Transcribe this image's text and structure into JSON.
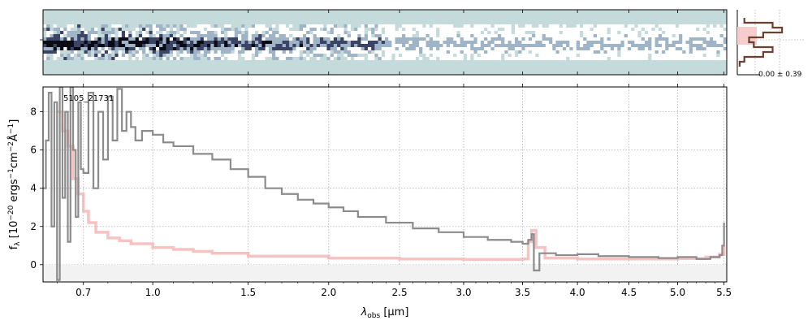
{
  "chart_data": [
    {
      "type": "heatmap",
      "panel": "2d-spectrum",
      "colormap": [
        "#c5dadb",
        "#ffffff",
        "#9fb4c6",
        "#3c4466",
        "#0b0b16"
      ],
      "background_color": "#c5dadb",
      "xlim_um": [
        0.55,
        5.53
      ],
      "trace_rows": 11
    },
    {
      "type": "line",
      "panel": "cross-dispersion-profile",
      "annotation": "0.00 ± 0.39",
      "profile": [
        0.15,
        0.75,
        0.95,
        0.55,
        0.25,
        0.35,
        0.75,
        0.55,
        0.15,
        0.05
      ],
      "profile_color": "#6b4030",
      "band_color": "#f6cccc"
    },
    {
      "type": "line",
      "panel": "1d-spectrum",
      "label": "5105_21731",
      "xlabel_main": "λ",
      "xlabel_sub": "obs",
      "xlabel_unit": " [μm]",
      "ylabel": "f_λ [10^-20 ergs^-1 cm^-2 Å^-1]",
      "x_scale": "sqrt",
      "xlim": [
        0.55,
        5.53
      ],
      "ylim": [
        -0.9,
        9.3
      ],
      "x_ticks": [
        "0.7",
        "1.0",
        "1.5",
        "2.0",
        "2.5",
        "3.0",
        "3.5",
        "4.0",
        "4.5",
        "5.0",
        "5.5"
      ],
      "y_ticks": [
        "0",
        "2",
        "4",
        "6",
        "8"
      ],
      "grid": true,
      "series": [
        {
          "color": "#8c8c8c",
          "points": [
            [
              0.55,
              4.0
            ],
            [
              0.56,
              6.5
            ],
            [
              0.57,
              9.0
            ],
            [
              0.58,
              2.0
            ],
            [
              0.59,
              8.5
            ],
            [
              0.6,
              -0.8
            ],
            [
              0.61,
              9.3
            ],
            [
              0.62,
              3.5
            ],
            [
              0.63,
              8.0
            ],
            [
              0.64,
              1.2
            ],
            [
              0.65,
              9.3
            ],
            [
              0.66,
              6.0
            ],
            [
              0.67,
              2.5
            ],
            [
              0.68,
              8.5
            ],
            [
              0.69,
              5.0
            ],
            [
              0.7,
              4.8
            ],
            [
              0.72,
              9.0
            ],
            [
              0.74,
              4.0
            ],
            [
              0.76,
              8.0
            ],
            [
              0.78,
              5.5
            ],
            [
              0.8,
              8.8
            ],
            [
              0.82,
              6.5
            ],
            [
              0.84,
              9.2
            ],
            [
              0.86,
              7.0
            ],
            [
              0.88,
              8.0
            ],
            [
              0.9,
              7.2
            ],
            [
              0.92,
              6.5
            ],
            [
              0.95,
              7.0
            ],
            [
              1.0,
              6.8
            ],
            [
              1.05,
              6.4
            ],
            [
              1.1,
              6.2
            ],
            [
              1.2,
              5.8
            ],
            [
              1.3,
              5.5
            ],
            [
              1.4,
              5.0
            ],
            [
              1.5,
              4.6
            ],
            [
              1.6,
              4.0
            ],
            [
              1.7,
              3.7
            ],
            [
              1.8,
              3.4
            ],
            [
              1.9,
              3.2
            ],
            [
              2.0,
              3.0
            ],
            [
              2.1,
              2.8
            ],
            [
              2.2,
              2.5
            ],
            [
              2.4,
              2.2
            ],
            [
              2.6,
              1.9
            ],
            [
              2.8,
              1.7
            ],
            [
              3.0,
              1.45
            ],
            [
              3.2,
              1.3
            ],
            [
              3.4,
              1.2
            ],
            [
              3.5,
              1.1
            ],
            [
              3.55,
              1.3
            ],
            [
              3.58,
              1.6
            ],
            [
              3.6,
              -0.3
            ],
            [
              3.65,
              0.6
            ],
            [
              3.8,
              0.5
            ],
            [
              4.0,
              0.55
            ],
            [
              4.2,
              0.45
            ],
            [
              4.5,
              0.4
            ],
            [
              4.8,
              0.35
            ],
            [
              5.0,
              0.4
            ],
            [
              5.2,
              0.3
            ],
            [
              5.35,
              0.4
            ],
            [
              5.45,
              0.5
            ],
            [
              5.48,
              1.0
            ],
            [
              5.5,
              2.2
            ]
          ]
        },
        {
          "color": "#f4aaa8",
          "points": [
            [
              0.6,
              8.0
            ],
            [
              0.62,
              7.0
            ],
            [
              0.64,
              6.2
            ],
            [
              0.66,
              4.5
            ],
            [
              0.68,
              3.7
            ],
            [
              0.7,
              2.8
            ],
            [
              0.72,
              2.2
            ],
            [
              0.75,
              1.7
            ],
            [
              0.8,
              1.4
            ],
            [
              0.85,
              1.25
            ],
            [
              0.9,
              1.1
            ],
            [
              1.0,
              0.9
            ],
            [
              1.1,
              0.8
            ],
            [
              1.2,
              0.7
            ],
            [
              1.3,
              0.6
            ],
            [
              1.5,
              0.45
            ],
            [
              2.0,
              0.35
            ],
            [
              2.5,
              0.3
            ],
            [
              3.0,
              0.28
            ],
            [
              3.3,
              0.28
            ],
            [
              3.5,
              0.3
            ],
            [
              3.55,
              1.2
            ],
            [
              3.58,
              1.8
            ],
            [
              3.62,
              0.9
            ],
            [
              3.7,
              0.35
            ],
            [
              4.0,
              0.3
            ],
            [
              4.5,
              0.3
            ],
            [
              5.0,
              0.32
            ],
            [
              5.3,
              0.4
            ],
            [
              5.45,
              0.55
            ],
            [
              5.5,
              1.0
            ]
          ]
        }
      ]
    }
  ]
}
